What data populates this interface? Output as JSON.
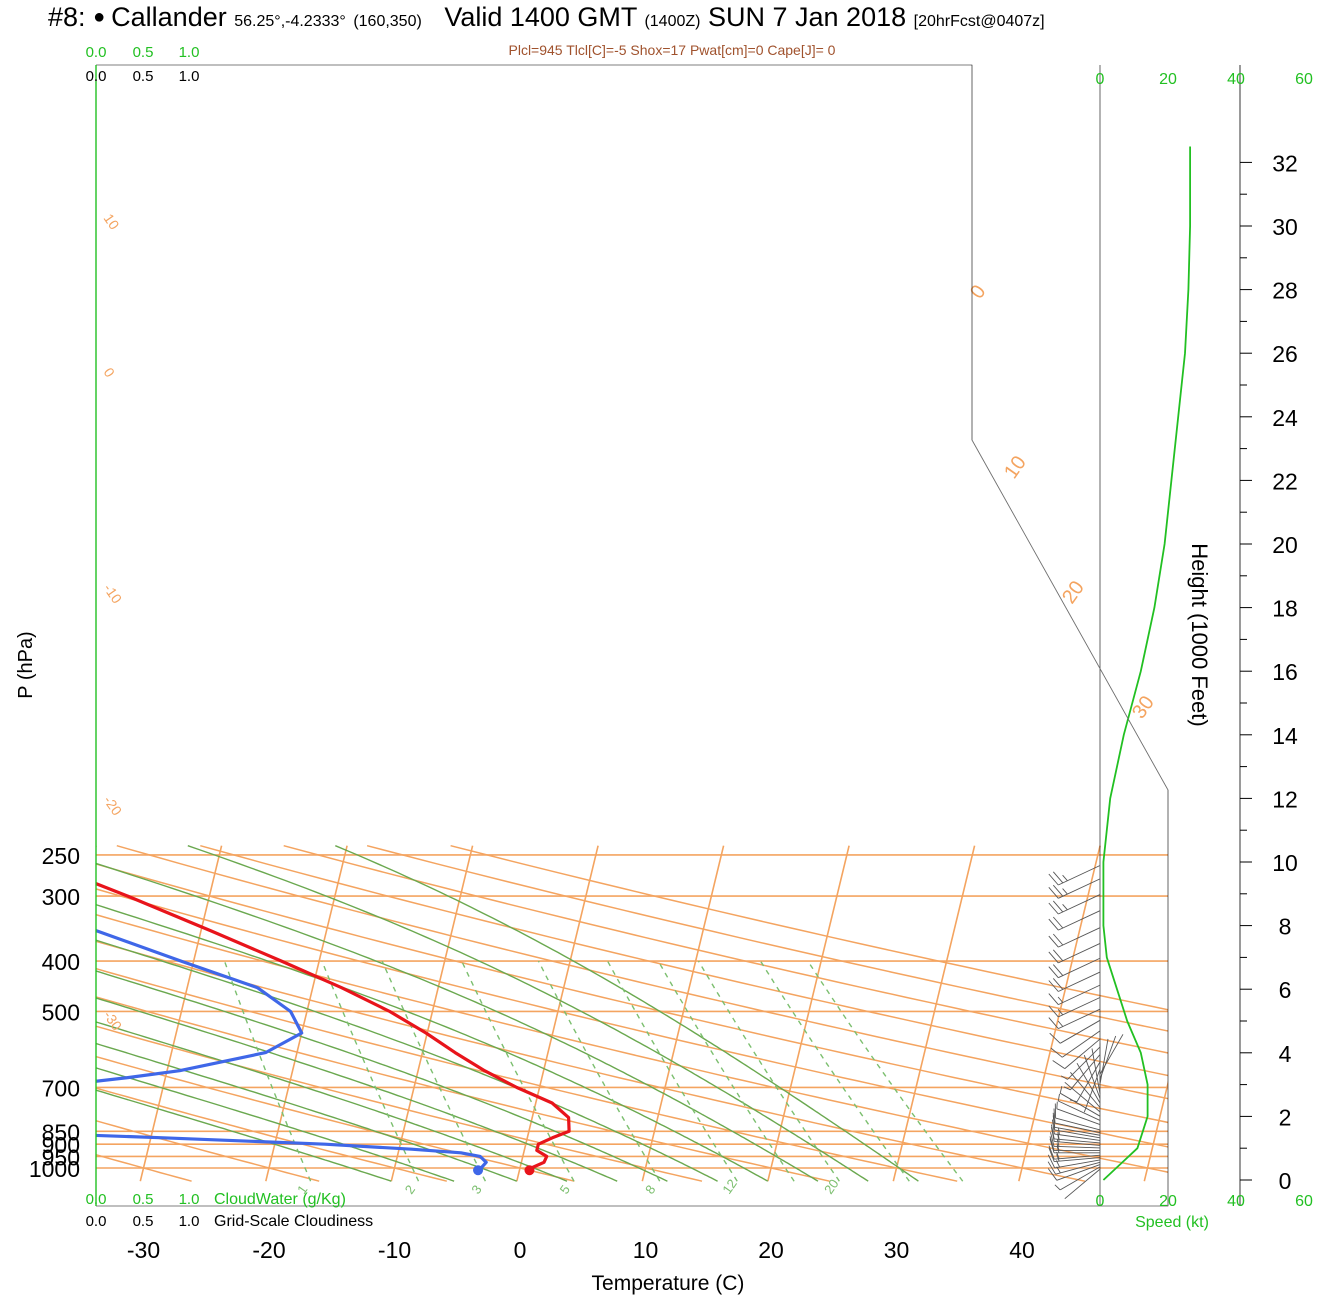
{
  "title": {
    "prefix": "#8:",
    "station": "Callander",
    "coords": "56.25°,-4.2333°",
    "grid": "(160,350)",
    "valid": "Valid 1400 GMT",
    "zulu": "(1400Z)",
    "date": "SUN 7 Jan 2018",
    "fcst": "[20hrFcst@0407z]"
  },
  "params": "Plcl=945 Tlcl[C]=-5 Shox=17 Pwat[cm]=0 Cape[J]= 0",
  "colors": {
    "isotherm": "#f4a460",
    "dry_adiabat": "#f4a460",
    "moist_adiabat": "#6aa84f",
    "mixing_ratio": "#7cbf6f",
    "temperature": "#e8141b",
    "dewpoint": "#3f67e8",
    "wind_speed": "#22c022",
    "cloud_axis": "#22c022"
  },
  "chart_data": {
    "type": "skew-t",
    "xlabel": "Temperature (C)",
    "ylabel": "P (hPa)",
    "x_ticks": [
      -30,
      -20,
      -10,
      0,
      10,
      20,
      30,
      40
    ],
    "x_range": [
      -34,
      36
    ],
    "p_range": [
      1050,
      250
    ],
    "p_ticks": [
      1000,
      950,
      900,
      850,
      700,
      500,
      400,
      300,
      250
    ],
    "height_axis": {
      "label": "Height (1000 Feet)",
      "ticks": [
        0,
        2,
        4,
        6,
        8,
        10,
        12,
        14,
        16,
        18,
        20,
        22,
        24,
        26,
        28,
        30,
        32
      ]
    },
    "isotherm_labels": [
      "-30",
      "-20",
      "-10",
      "0",
      "10",
      "20",
      "30"
    ],
    "isotherm_label_values": [
      -30,
      -20,
      -10,
      0,
      10,
      20,
      30
    ],
    "dry_adiabat_labels": [
      "10",
      "0",
      "-10",
      "-20",
      "-30",
      "0",
      "10",
      "20",
      "30"
    ],
    "mixing_ratio_labels": [
      "1",
      "2",
      "3",
      "5",
      "8",
      "12",
      "20"
    ],
    "mixing_ratio_values": [
      1,
      2,
      3,
      5,
      8,
      12,
      20
    ],
    "temperature": [
      {
        "p": 1010,
        "t": 0.8
      },
      {
        "p": 1000,
        "t": 0.9
      },
      {
        "p": 975,
        "t": 1.8
      },
      {
        "p": 950,
        "t": 1.9
      },
      {
        "p": 925,
        "t": 1.0
      },
      {
        "p": 900,
        "t": 1.0
      },
      {
        "p": 875,
        "t": 2.0
      },
      {
        "p": 850,
        "t": 3.2
      },
      {
        "p": 800,
        "t": 2.9
      },
      {
        "p": 750,
        "t": 1.3
      },
      {
        "p": 700,
        "t": -1.8
      },
      {
        "p": 650,
        "t": -4.7
      },
      {
        "p": 600,
        "t": -7.4
      },
      {
        "p": 550,
        "t": -10.1
      },
      {
        "p": 500,
        "t": -13.4
      },
      {
        "p": 450,
        "t": -17.7
      },
      {
        "p": 400,
        "t": -23.0
      },
      {
        "p": 350,
        "t": -29.2
      },
      {
        "p": 300,
        "t": -36.5
      },
      {
        "p": 270,
        "t": -41.8
      }
    ],
    "dewpoint": [
      {
        "p": 1010,
        "t": -3.3
      },
      {
        "p": 1000,
        "t": -3.1
      },
      {
        "p": 975,
        "t": -2.8
      },
      {
        "p": 950,
        "t": -3.4
      },
      {
        "p": 935,
        "t": -5.0
      },
      {
        "p": 920,
        "t": -9.0
      },
      {
        "p": 900,
        "t": -16.0
      },
      {
        "p": 875,
        "t": -29.0
      },
      {
        "p": 860,
        "t": -38.0
      },
      {
        "p": 850,
        "t": -48.0
      },
      {
        "p": 700,
        "t": -40.0
      },
      {
        "p": 690,
        "t": -37.5
      },
      {
        "p": 670,
        "t": -33.0
      },
      {
        "p": 650,
        "t": -29.0
      },
      {
        "p": 600,
        "t": -22.5
      },
      {
        "p": 550,
        "t": -20.0
      },
      {
        "p": 500,
        "t": -21.3
      },
      {
        "p": 450,
        "t": -24.4
      },
      {
        "p": 400,
        "t": -31.0
      },
      {
        "p": 350,
        "t": -38.3
      },
      {
        "p": 300,
        "t": -46.3
      },
      {
        "p": 270,
        "t": -51.6
      }
    ],
    "surface_temperature": 0.8,
    "surface_dewpoint": -3.3,
    "wind_speed_profile": [
      {
        "z": 0,
        "kt": 1
      },
      {
        "z": 0.5,
        "kt": 6
      },
      {
        "z": 1,
        "kt": 11
      },
      {
        "z": 2,
        "kt": 14
      },
      {
        "z": 3,
        "kt": 14
      },
      {
        "z": 4,
        "kt": 12
      },
      {
        "z": 5,
        "kt": 8
      },
      {
        "z": 6,
        "kt": 5
      },
      {
        "z": 7,
        "kt": 2
      },
      {
        "z": 8,
        "kt": 1
      },
      {
        "z": 10,
        "kt": 1
      },
      {
        "z": 12,
        "kt": 3
      },
      {
        "z": 14,
        "kt": 7
      },
      {
        "z": 16,
        "kt": 12
      },
      {
        "z": 18,
        "kt": 16
      },
      {
        "z": 20,
        "kt": 19
      },
      {
        "z": 22,
        "kt": 21
      },
      {
        "z": 24,
        "kt": 23
      },
      {
        "z": 26,
        "kt": 25
      },
      {
        "z": 28,
        "kt": 26
      },
      {
        "z": 30,
        "kt": 26.5
      },
      {
        "z": 32.5,
        "kt": 26.5
      }
    ],
    "wind_speed_axis": {
      "ticks": [
        "0",
        "20",
        "40",
        "60"
      ],
      "values": [
        0,
        20,
        40,
        60
      ],
      "label": "Speed (kt)"
    },
    "cloud_axes": {
      "cloud_water": {
        "ticks": [
          "0.0",
          "0.5",
          "1.0"
        ],
        "label": "CloudWater (g/Kg)"
      },
      "cloudiness": {
        "ticks": [
          "0.0",
          "0.5",
          "1.0"
        ],
        "label": "Grid-Scale Cloudiness"
      }
    },
    "wind_barbs": [
      {
        "p": 1005,
        "dir": 230,
        "kt": 3
      },
      {
        "p": 995,
        "dir": 240,
        "kt": 8
      },
      {
        "p": 985,
        "dir": 250,
        "kt": 12
      },
      {
        "p": 975,
        "dir": 255,
        "kt": 15
      },
      {
        "p": 965,
        "dir": 260,
        "kt": 15
      },
      {
        "p": 955,
        "dir": 265,
        "kt": 15
      },
      {
        "p": 945,
        "dir": 265,
        "kt": 15
      },
      {
        "p": 935,
        "dir": 270,
        "kt": 15
      },
      {
        "p": 925,
        "dir": 270,
        "kt": 15
      },
      {
        "p": 915,
        "dir": 272,
        "kt": 15
      },
      {
        "p": 905,
        "dir": 275,
        "kt": 15
      },
      {
        "p": 895,
        "dir": 275,
        "kt": 15
      },
      {
        "p": 885,
        "dir": 278,
        "kt": 15
      },
      {
        "p": 875,
        "dir": 280,
        "kt": 12
      },
      {
        "p": 865,
        "dir": 280,
        "kt": 12
      },
      {
        "p": 855,
        "dir": 282,
        "kt": 12
      },
      {
        "p": 845,
        "dir": 285,
        "kt": 10
      },
      {
        "p": 825,
        "dir": 290,
        "kt": 8
      },
      {
        "p": 810,
        "dir": 295,
        "kt": 7
      },
      {
        "p": 795,
        "dir": 300,
        "kt": 5
      },
      {
        "p": 780,
        "dir": 310,
        "kt": 4
      },
      {
        "p": 765,
        "dir": 320,
        "kt": 3
      },
      {
        "p": 750,
        "dir": 330,
        "kt": 3
      },
      {
        "p": 735,
        "dir": 340,
        "kt": 2
      },
      {
        "p": 720,
        "dir": 350,
        "kt": 2
      },
      {
        "p": 705,
        "dir": 0,
        "kt": 2
      },
      {
        "p": 690,
        "dir": 10,
        "kt": 2
      },
      {
        "p": 675,
        "dir": 20,
        "kt": 3
      },
      {
        "p": 660,
        "dir": 30,
        "kt": 3
      },
      {
        "p": 645,
        "dir": 200,
        "kt": 3
      },
      {
        "p": 625,
        "dir": 210,
        "kt": 5
      },
      {
        "p": 605,
        "dir": 220,
        "kt": 7
      },
      {
        "p": 585,
        "dir": 225,
        "kt": 8
      },
      {
        "p": 565,
        "dir": 230,
        "kt": 10
      },
      {
        "p": 545,
        "dir": 235,
        "kt": 12
      },
      {
        "p": 520,
        "dir": 240,
        "kt": 14
      },
      {
        "p": 495,
        "dir": 245,
        "kt": 16
      },
      {
        "p": 470,
        "dir": 245,
        "kt": 18
      },
      {
        "p": 445,
        "dir": 245,
        "kt": 19
      },
      {
        "p": 420,
        "dir": 245,
        "kt": 20
      },
      {
        "p": 395,
        "dir": 245,
        "kt": 21
      },
      {
        "p": 370,
        "dir": 245,
        "kt": 22
      },
      {
        "p": 345,
        "dir": 245,
        "kt": 23
      },
      {
        "p": 320,
        "dir": 245,
        "kt": 24
      },
      {
        "p": 298,
        "dir": 245,
        "kt": 25
      },
      {
        "p": 278,
        "dir": 245,
        "kt": 26
      },
      {
        "p": 262,
        "dir": 245,
        "kt": 27
      }
    ]
  }
}
